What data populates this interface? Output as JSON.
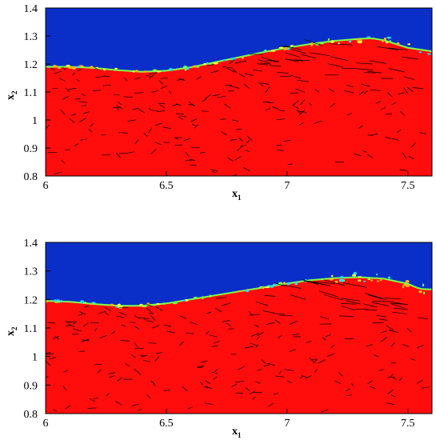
{
  "chart_data": [
    {
      "type": "heatmap",
      "panel": "top",
      "xlabel": "x",
      "xlabel_sub": "1",
      "ylabel": "x",
      "ylabel_sub": "2",
      "xlim": [
        6,
        7.6
      ],
      "ylim": [
        0.8,
        1.4
      ],
      "x_ticks": [
        "6",
        "6.5",
        "7",
        "7.5"
      ],
      "y_ticks": [
        "0.8",
        "0.9",
        "1",
        "1.1",
        "1.2",
        "1.3",
        "1.4"
      ],
      "colors": {
        "upper_fluid": "#0a2fc8",
        "lower_fluid": "#ff0d0d",
        "interface": "#7cff4a",
        "vectors": "#000000"
      },
      "interface": {
        "x": [
          6.0,
          6.1,
          6.2,
          6.3,
          6.4,
          6.5,
          6.6,
          6.7,
          6.8,
          6.9,
          7.0,
          7.1,
          7.2,
          7.3,
          7.35,
          7.4,
          7.5,
          7.6
        ],
        "y": [
          1.19,
          1.19,
          1.186,
          1.178,
          1.172,
          1.176,
          1.188,
          1.206,
          1.224,
          1.242,
          1.258,
          1.272,
          1.283,
          1.29,
          1.292,
          1.285,
          1.258,
          1.245
        ]
      }
    },
    {
      "type": "heatmap",
      "panel": "bottom",
      "xlabel": "x",
      "xlabel_sub": "1",
      "ylabel": "x",
      "ylabel_sub": "2",
      "xlim": [
        6,
        7.6
      ],
      "ylim": [
        0.8,
        1.4
      ],
      "x_ticks": [
        "6",
        "6.5",
        "7",
        "7.5"
      ],
      "y_ticks": [
        "0.8",
        "0.9",
        "1",
        "1.1",
        "1.2",
        "1.3",
        "1.4"
      ],
      "colors": {
        "upper_fluid": "#0a2fc8",
        "lower_fluid": "#ff0d0d",
        "interface": "#7cff4a",
        "vectors": "#000000"
      },
      "interface": {
        "x": [
          6.0,
          6.1,
          6.2,
          6.3,
          6.4,
          6.5,
          6.6,
          6.7,
          6.8,
          6.9,
          7.0,
          7.1,
          7.2,
          7.3,
          7.4,
          7.5,
          7.55,
          7.6
        ],
        "y": [
          1.195,
          1.192,
          1.184,
          1.178,
          1.178,
          1.186,
          1.2,
          1.214,
          1.228,
          1.242,
          1.256,
          1.268,
          1.275,
          1.278,
          1.273,
          1.255,
          1.237,
          1.235
        ]
      }
    }
  ]
}
